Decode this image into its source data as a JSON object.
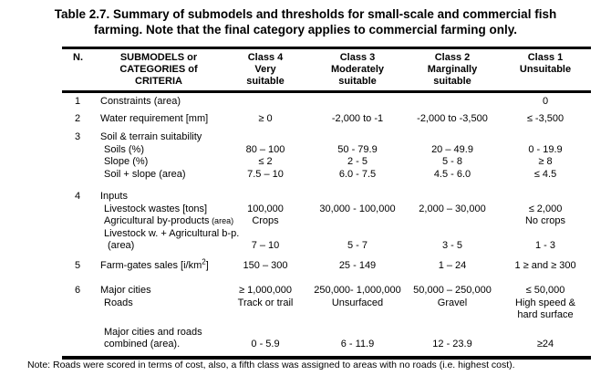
{
  "page": {
    "title": "Table 2.7. Summary of submodels and thresholds for small-scale and commercial fish\nfarming.  Note that the final category applies to commercial farming only.",
    "note": "Note: Roads were scored in terms of cost, also, a fifth class was assigned to areas with no roads (i.e. highest cost)."
  },
  "table": {
    "header": {
      "n": "N.",
      "criteria": "SUBMODELS or\nCATEGORIES of CRITERIA",
      "classes": [
        "Class 4\nVery\nsuitable",
        "Class 3\nModerately\nsuitable",
        "Class 2\nMarginally\nsuitable",
        "Class 1\nUnsuitable"
      ]
    },
    "rows": [
      {
        "n": "1",
        "label": "Constraints (area)",
        "values": [
          "",
          "",
          "",
          "0"
        ],
        "gap": 0
      },
      {
        "n": "2",
        "label": "Water requirement [mm]",
        "values": [
          "≥ 0",
          "-2,000 to -1",
          "-2,000 to -3,500",
          "≤ -3,500"
        ],
        "gap": 5
      },
      {
        "n": "3",
        "label": "Soil & terrain suitability",
        "values": [
          "",
          "",
          "",
          ""
        ],
        "gap": 7
      },
      {
        "label": "Soils (%)",
        "indent": 1,
        "values": [
          "80 – 100",
          "50 - 79.9",
          "20 – 49.9",
          "0 - 19.9"
        ],
        "gap": 0
      },
      {
        "label": "Slope (%)",
        "indent": 1,
        "values": [
          "≤ 2",
          "2 - 5",
          "5 - 8",
          "≥ 8"
        ],
        "gap": 0
      },
      {
        "label": "Soil + slope (area)",
        "indent": 1,
        "values": [
          "7.5 – 10",
          "6.0 - 7.5",
          "4.5 - 6.0",
          "≤ 4.5"
        ],
        "gap": 0
      },
      {
        "n": "4",
        "label": "Inputs",
        "values": [
          "",
          "",
          "",
          ""
        ],
        "gap": 11
      },
      {
        "label": "Livestock wastes [tons]",
        "indent": 1,
        "values": [
          "100,000",
          "30,000 - 100,000",
          "2,000 – 30,000",
          "≤ 2,000"
        ],
        "gap": 0
      },
      {
        "label": "Agricultural by-products",
        "label_small": " (area)",
        "indent": 1,
        "values": [
          "Crops",
          "",
          "",
          "No crops"
        ],
        "gap": 0
      },
      {
        "label": "Livestock w. + Agricultural b-p.",
        "indent": 1,
        "values": [
          "",
          "",
          "",
          ""
        ],
        "gap": 0
      },
      {
        "label": "(area)",
        "indent": 2,
        "values": [
          "7 – 10",
          "5 - 7",
          "3 - 5",
          "1 - 3"
        ],
        "gap": 0
      },
      {
        "n": "5",
        "label": "Farm-gates sales [i/km",
        "label_sup": "2",
        "label_post": "]",
        "values": [
          "150 – 300",
          "25 - 149",
          "1 – 24",
          "1 ≥ and ≥ 300"
        ],
        "gap": 8
      },
      {
        "n": "6",
        "label": "Major cities",
        "values": [
          "≥ 1,000,000",
          "250,000- 1,000,000",
          "50,000 – 250,000",
          "≤ 50,000"
        ],
        "gap": 14
      },
      {
        "label": "Roads",
        "indent": 1,
        "values": [
          "Track or trail",
          "Unsurfaced",
          "Gravel",
          "High speed &\nhard surface"
        ],
        "gap": 0
      },
      {
        "label": "Major cities and roads",
        "indent": 1,
        "values": [
          "",
          "",
          "",
          ""
        ],
        "gap": 5
      },
      {
        "label": "combined (area).",
        "indent": 1,
        "values": [
          "0 - 5.9",
          "6 - 11.9",
          "12 - 23.9",
          "≥24"
        ],
        "gap": 0
      }
    ]
  }
}
